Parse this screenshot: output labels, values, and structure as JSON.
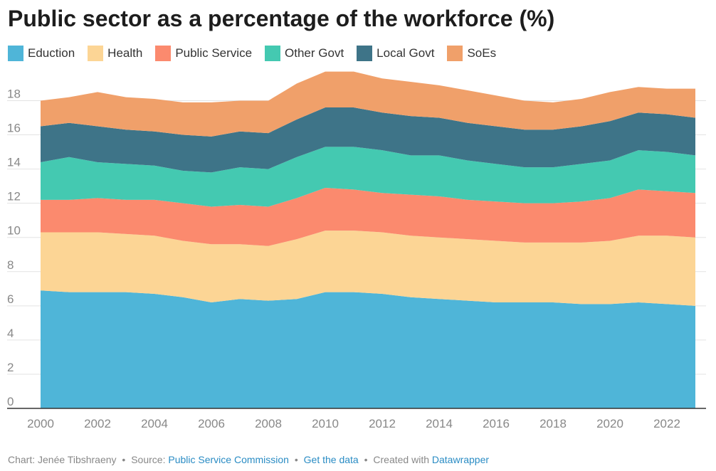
{
  "chart_data": {
    "type": "area",
    "stacked": true,
    "title": "Public sector as a percentage of the workforce (%)",
    "x": [
      2000,
      2001,
      2002,
      2003,
      2004,
      2005,
      2006,
      2007,
      2008,
      2009,
      2010,
      2011,
      2012,
      2013,
      2014,
      2015,
      2016,
      2017,
      2018,
      2019,
      2020,
      2021,
      2022,
      2023
    ],
    "x_ticks": [
      2000,
      2002,
      2004,
      2006,
      2008,
      2010,
      2012,
      2014,
      2016,
      2018,
      2020,
      2022
    ],
    "ylim": [
      0,
      19.6
    ],
    "y_ticks": [
      0,
      2,
      4,
      6,
      8,
      10,
      12,
      14,
      16,
      18
    ],
    "grid": true,
    "legend_position": "top-left",
    "series": [
      {
        "name": "Eduction",
        "color": "#4fb5d8",
        "values": [
          6.9,
          6.8,
          6.8,
          6.8,
          6.7,
          6.5,
          6.2,
          6.4,
          6.3,
          6.4,
          6.8,
          6.8,
          6.7,
          6.5,
          6.4,
          6.3,
          6.2,
          6.2,
          6.2,
          6.1,
          6.1,
          6.2,
          6.1,
          6.0
        ]
      },
      {
        "name": "Health",
        "color": "#fcd595",
        "values": [
          3.4,
          3.5,
          3.5,
          3.4,
          3.4,
          3.3,
          3.4,
          3.2,
          3.2,
          3.5,
          3.6,
          3.6,
          3.6,
          3.6,
          3.6,
          3.6,
          3.6,
          3.5,
          3.5,
          3.6,
          3.7,
          3.9,
          4.0,
          4.0
        ]
      },
      {
        "name": "Public Service",
        "color": "#fb8a6e",
        "values": [
          1.9,
          1.9,
          2.0,
          2.0,
          2.1,
          2.2,
          2.2,
          2.3,
          2.3,
          2.4,
          2.5,
          2.4,
          2.3,
          2.4,
          2.4,
          2.3,
          2.3,
          2.3,
          2.3,
          2.4,
          2.5,
          2.7,
          2.6,
          2.6
        ]
      },
      {
        "name": "Other Govt",
        "color": "#44c9b1",
        "values": [
          2.2,
          2.5,
          2.1,
          2.1,
          2.0,
          1.9,
          2.0,
          2.2,
          2.2,
          2.4,
          2.4,
          2.5,
          2.5,
          2.3,
          2.4,
          2.3,
          2.2,
          2.1,
          2.1,
          2.2,
          2.2,
          2.3,
          2.3,
          2.2
        ]
      },
      {
        "name": "Local Govt",
        "color": "#3e7488",
        "values": [
          2.1,
          2.0,
          2.1,
          2.0,
          2.0,
          2.1,
          2.1,
          2.1,
          2.1,
          2.2,
          2.3,
          2.3,
          2.2,
          2.3,
          2.2,
          2.2,
          2.2,
          2.2,
          2.2,
          2.2,
          2.3,
          2.2,
          2.2,
          2.2
        ]
      },
      {
        "name": "SoEs",
        "color": "#f0a06a",
        "values": [
          1.5,
          1.5,
          2.0,
          1.9,
          1.9,
          1.9,
          2.0,
          1.8,
          1.9,
          2.1,
          2.1,
          2.1,
          2.0,
          2.0,
          1.9,
          1.9,
          1.8,
          1.7,
          1.6,
          1.6,
          1.7,
          1.5,
          1.5,
          1.7
        ]
      }
    ]
  },
  "footer": {
    "prefix": "Chart: Jenée Tibshraeny",
    "sep": "•",
    "source_label": "Source:",
    "source_link": "Public Service Commission",
    "data_link": "Get the data",
    "created_label": "Created with",
    "created_link": "Datawrapper"
  }
}
